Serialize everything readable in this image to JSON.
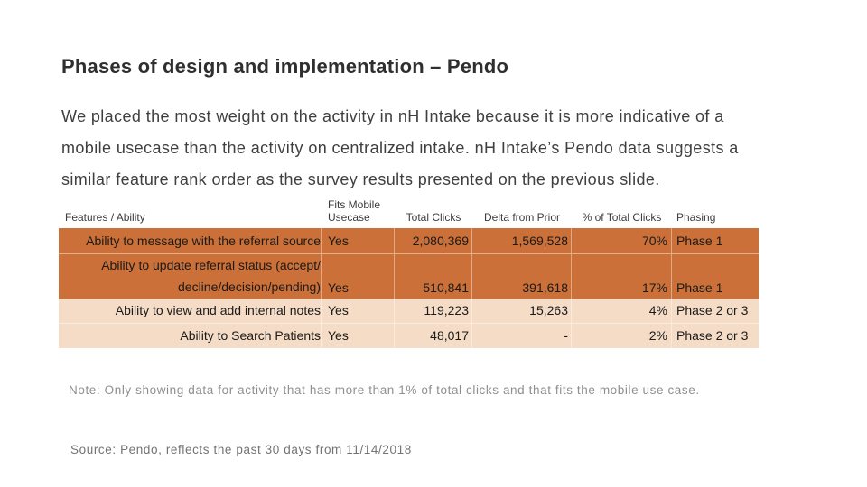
{
  "slide": {
    "title": "Phases of design and implementation – Pendo",
    "paragraph_lines": [
      "We placed the most weight on the activity in nH Intake because it is more indicative of a",
      "mobile usecase than the activity on centralized intake. nH Intake’s Pendo data suggests a",
      "similar feature rank order as the survey results presented on the previous slide."
    ],
    "note": "Note: Only showing data for activity that has more than 1% of total clicks and that fits the mobile use case.",
    "source": "Source: Pendo, reflects the past 30 days from 11/14/2018"
  },
  "table": {
    "headers": {
      "feature": "Features / Ability",
      "fits_mobile": "Fits Mobile Usecase",
      "total_clicks": "Total Clicks",
      "delta_from_prior": "Delta from Prior",
      "pct_of_total_clicks": "% of Total Clicks",
      "phasing": "Phasing"
    },
    "rows": [
      {
        "feature": "Ability to message with the referral source",
        "fits_mobile": "Yes",
        "total_clicks": "2,080,369",
        "delta_from_prior": "1,569,528",
        "pct_of_total_clicks": "70%",
        "phasing": "Phase 1"
      },
      {
        "feature": "Ability to update referral status (accept/",
        "feature_line2": "decline/decision/pending)",
        "fits_mobile": "Yes",
        "total_clicks": "510,841",
        "delta_from_prior": "391,618",
        "pct_of_total_clicks": "17%",
        "phasing": "Phase 1"
      },
      {
        "feature": "Ability to view and add internal notes",
        "fits_mobile": "Yes",
        "total_clicks": "119,223",
        "delta_from_prior": "15,263",
        "pct_of_total_clicks": "4%",
        "phasing": "Phase 2 or 3"
      },
      {
        "feature": "Ability to Search Patients",
        "fits_mobile": "Yes",
        "total_clicks": "48,017",
        "delta_from_prior": "-",
        "pct_of_total_clicks": "2%",
        "phasing": "Phase 2 or 3"
      }
    ]
  },
  "colors": {
    "phase1_row_bg": "#cb7038",
    "phase23_row_bg": "#f5dcc6"
  }
}
